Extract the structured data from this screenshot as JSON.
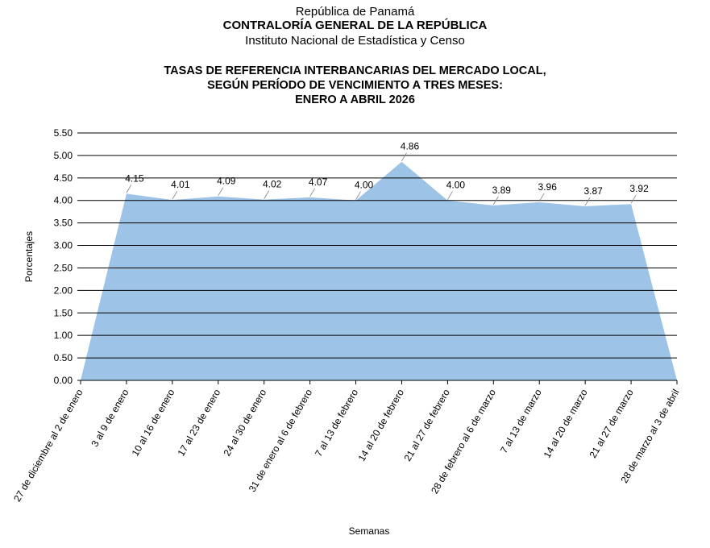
{
  "header": {
    "line1": "República de Panamá",
    "line2": "CONTRALORÍA GENERAL DE LA REPÚBLICA",
    "line3": "Instituto  Nacional de Estadística y Censo"
  },
  "chart_data": {
    "type": "area",
    "title": [
      "TASAS DE REFERENCIA INTERBANCARIAS DEL MERCADO LOCAL,",
      "SEGÚN PERÍODO DE VENCIMIENTO A TRES MESES:",
      "ENERO A ABRIL 2026"
    ],
    "xlabel": "Semanas",
    "ylabel": "Porcentajes",
    "ylim": [
      0,
      5.5
    ],
    "yticks": [
      "0.00",
      "0.50",
      "1.00",
      "1.50",
      "2.00",
      "2.50",
      "3.00",
      "3.50",
      "4.00",
      "4.50",
      "5.00",
      "5.50"
    ],
    "grid": "horizontal",
    "fill_color": "#9dc3e6",
    "categories": [
      "27 de diciembre al 2 de enero",
      "3 al 9 de enero",
      "10 al 16 de enero",
      "17 al 23 de enero",
      "24 al 30 de enero",
      "31 de enero al 6 de febrero",
      "7 al 13 de febrero",
      "14 al 20 de febrero",
      "21 al 27 de febrero",
      "28 de febrero al 6 de marzo",
      "7 al 13 de marzo",
      "14 al 20 de marzo",
      "21 al 27 de marzo",
      "28 de marzo al 3 de abril"
    ],
    "values": [
      0,
      4.15,
      4.01,
      4.09,
      4.02,
      4.07,
      4.0,
      4.86,
      4.0,
      3.89,
      3.96,
      3.87,
      3.92,
      0
    ],
    "data_labels": [
      "",
      "4.15",
      "4.01",
      "4.09",
      "4.02",
      "4.07",
      "4.00",
      "4.86",
      "4.00",
      "3.89",
      "3.96",
      "3.87",
      "3.92",
      ""
    ]
  }
}
